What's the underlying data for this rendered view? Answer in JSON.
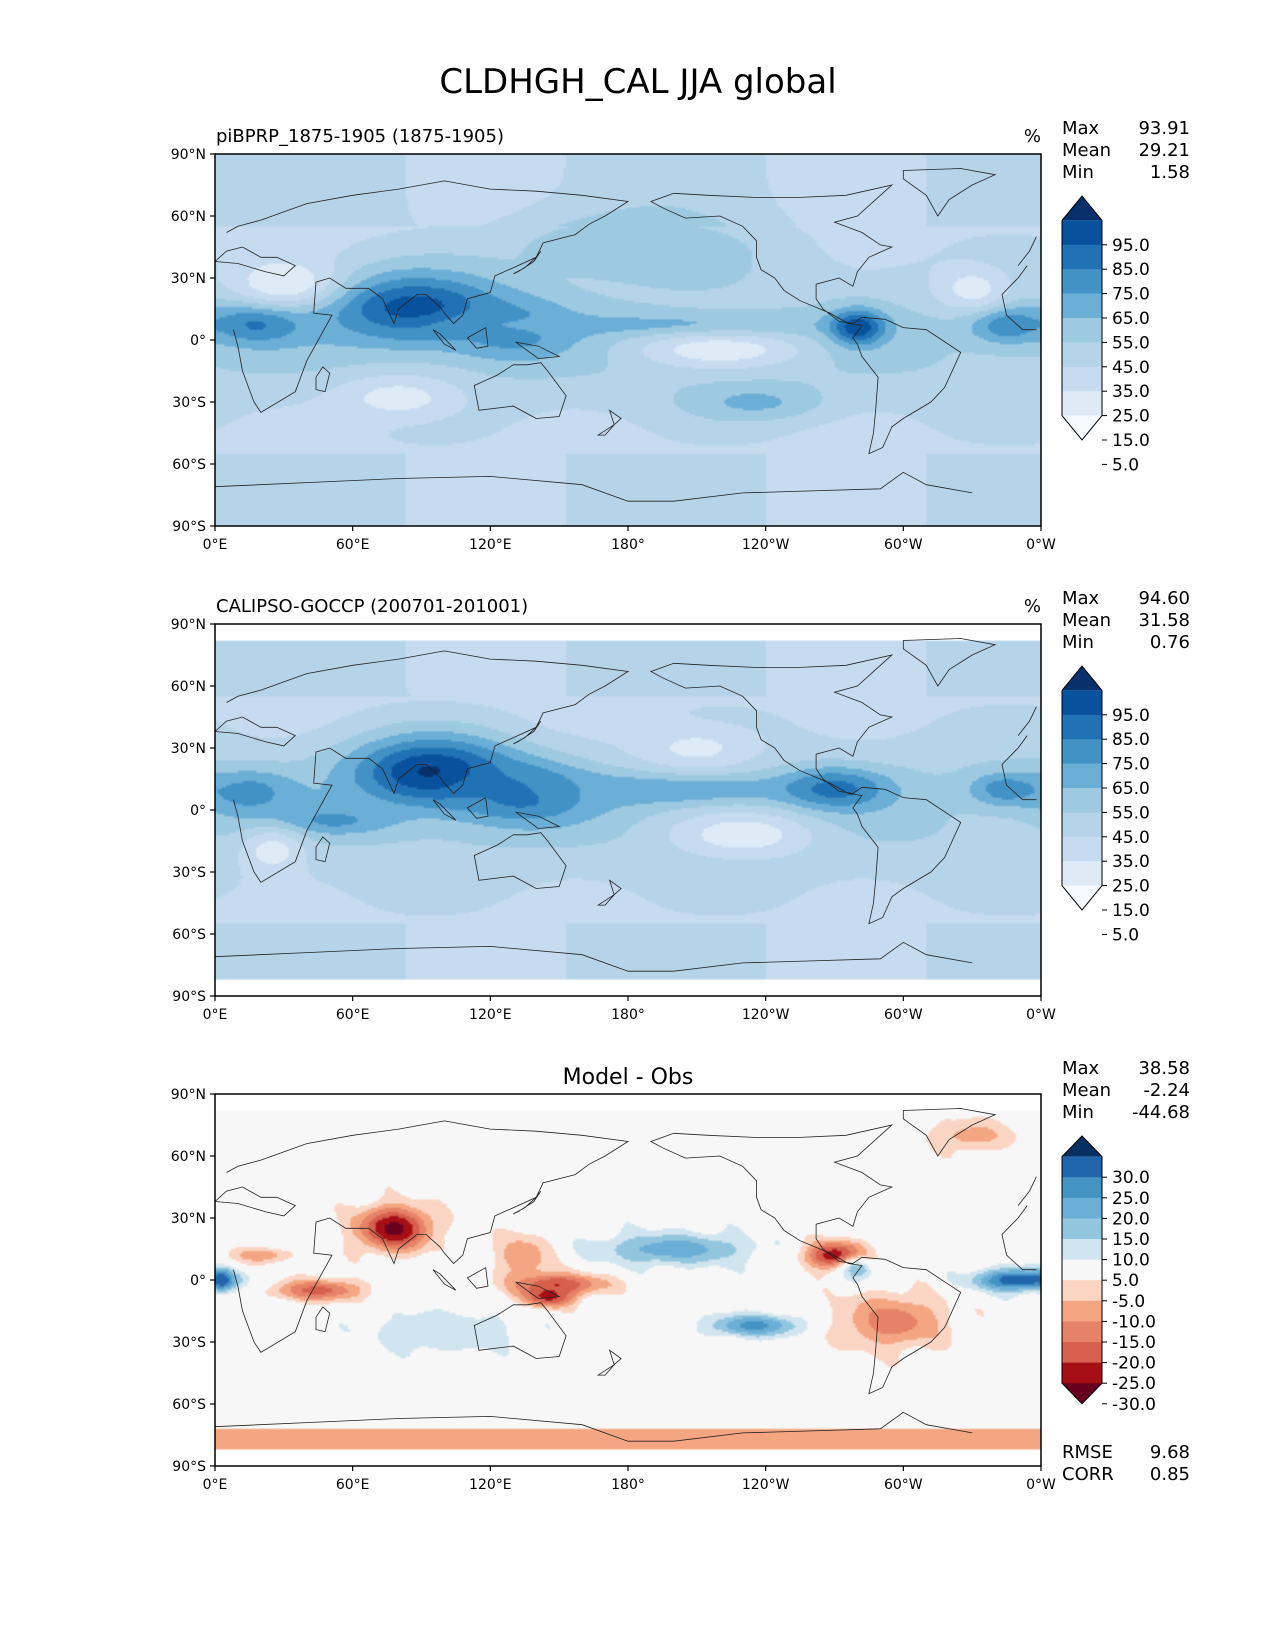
{
  "title": "CLDHGH_CAL JJA global",
  "x_ticks": [
    "0°E",
    "60°E",
    "120°E",
    "180°",
    "120°W",
    "60°W",
    "0°W"
  ],
  "y_ticks": [
    "90°N",
    "60°N",
    "30°N",
    "0°",
    "30°S",
    "60°S",
    "90°S"
  ],
  "colors": {
    "blues": [
      "#f7fbff",
      "#deebf7",
      "#c6dbef",
      "#b5d3e9",
      "#9ecae1",
      "#6baed6",
      "#4292c6",
      "#2171b5",
      "#08519c",
      "#08306b"
    ],
    "diverging": [
      "#67001f",
      "#a50f15",
      "#d6604d",
      "#e58267",
      "#f4a582",
      "#fbd5c4",
      "#f7f7f7",
      "#d1e5f0",
      "#92c5de",
      "#6baed6",
      "#4393c3",
      "#2166ac",
      "#053061"
    ],
    "coast": "#222222",
    "axes": "#000000"
  },
  "chart_data": [
    {
      "type": "heatmap",
      "title": "piBPRP_1875-1905 (1875-1905)",
      "units": "%",
      "stats": [
        {
          "label": "Max",
          "value": "93.91"
        },
        {
          "label": "Mean",
          "value": "29.21"
        },
        {
          "label": "Min",
          "value": "1.58"
        }
      ],
      "colorbar": {
        "levels": [
          "95.0",
          "85.0",
          "75.0",
          "65.0",
          "55.0",
          "45.0",
          "35.0",
          "25.0",
          "15.0",
          "5.0"
        ]
      },
      "xlim": [
        0,
        360
      ],
      "ylim": [
        -90,
        90
      ],
      "features": [
        {
          "lon": 18,
          "lat": 8,
          "value": 68,
          "sx": 14,
          "sy": 7
        },
        {
          "lon": 88,
          "lat": 15,
          "value": 82,
          "sx": 28,
          "sy": 12
        },
        {
          "lon": 130,
          "lat": 5,
          "value": 62,
          "sx": 18,
          "sy": 10
        },
        {
          "lon": 190,
          "lat": 7,
          "value": 50,
          "sx": 60,
          "sy": 4
        },
        {
          "lon": 280,
          "lat": 6,
          "value": 85,
          "sx": 8,
          "sy": 6
        },
        {
          "lon": 345,
          "lat": 8,
          "value": 65,
          "sx": 12,
          "sy": 7
        },
        {
          "lon": 235,
          "lat": -30,
          "value": 48,
          "sx": 20,
          "sy": 6
        },
        {
          "lon": 180,
          "lat": 45,
          "value": 45,
          "sx": 40,
          "sy": 12
        },
        {
          "lon": 30,
          "lat": 28,
          "value": 6,
          "sx": 16,
          "sy": 8
        },
        {
          "lon": 220,
          "lat": -5,
          "value": 8,
          "sx": 25,
          "sy": 6
        },
        {
          "lon": 80,
          "lat": -28,
          "value": 10,
          "sx": 20,
          "sy": 8
        },
        {
          "lon": 330,
          "lat": 25,
          "value": 10,
          "sx": 12,
          "sy": 8
        }
      ]
    },
    {
      "type": "heatmap",
      "title": "CALIPSO-GOCCP (200701-201001)",
      "units": "%",
      "stats": [
        {
          "label": "Max",
          "value": "94.60"
        },
        {
          "label": "Mean",
          "value": "31.58"
        },
        {
          "label": "Min",
          "value": "0.76"
        }
      ],
      "colorbar": {
        "levels": [
          "95.0",
          "85.0",
          "75.0",
          "65.0",
          "55.0",
          "45.0",
          "35.0",
          "25.0",
          "15.0",
          "5.0"
        ]
      },
      "xlim": [
        0,
        360
      ],
      "ylim": [
        -90,
        90
      ],
      "features": [
        {
          "lon": 15,
          "lat": 8,
          "value": 60,
          "sx": 14,
          "sy": 8
        },
        {
          "lon": 95,
          "lat": 18,
          "value": 88,
          "sx": 25,
          "sy": 12
        },
        {
          "lon": 135,
          "lat": 8,
          "value": 72,
          "sx": 20,
          "sy": 10
        },
        {
          "lon": 200,
          "lat": 10,
          "value": 55,
          "sx": 45,
          "sy": 6
        },
        {
          "lon": 270,
          "lat": 10,
          "value": 70,
          "sx": 16,
          "sy": 7
        },
        {
          "lon": 345,
          "lat": 10,
          "value": 62,
          "sx": 12,
          "sy": 6
        },
        {
          "lon": 50,
          "lat": -5,
          "value": 58,
          "sx": 20,
          "sy": 5
        },
        {
          "lon": 230,
          "lat": -12,
          "value": 8,
          "sx": 22,
          "sy": 8
        },
        {
          "lon": 25,
          "lat": -20,
          "value": 10,
          "sx": 10,
          "sy": 8
        },
        {
          "lon": 210,
          "lat": 30,
          "value": 12,
          "sx": 20,
          "sy": 8
        }
      ]
    },
    {
      "type": "heatmap",
      "title": "Model - Obs",
      "stats": [
        {
          "label": "Max",
          "value": "38.58"
        },
        {
          "label": "Mean",
          "value": "-2.24"
        },
        {
          "label": "Min",
          "value": "-44.68"
        }
      ],
      "colorbar": {
        "levels": [
          "30.0",
          "25.0",
          "20.0",
          "15.0",
          "10.0",
          "5.0",
          "-5.0",
          "-10.0",
          "-15.0",
          "-20.0",
          "-25.0",
          "-30.0"
        ]
      },
      "metrics": [
        {
          "label": "RMSE",
          "value": "9.68"
        },
        {
          "label": "CORR",
          "value": "0.85"
        }
      ],
      "xlim": [
        0,
        360
      ],
      "ylim": [
        -90,
        90
      ],
      "features": [
        {
          "lon": 78,
          "lat": 25,
          "value": -32,
          "sx": 12,
          "sy": 8
        },
        {
          "lon": 45,
          "lat": -5,
          "value": -22,
          "sx": 15,
          "sy": 4
        },
        {
          "lon": 20,
          "lat": 12,
          "value": -14,
          "sx": 10,
          "sy": 3
        },
        {
          "lon": 135,
          "lat": 12,
          "value": -15,
          "sx": 10,
          "sy": 8
        },
        {
          "lon": 150,
          "lat": -2,
          "value": -24,
          "sx": 15,
          "sy": 4
        },
        {
          "lon": 145,
          "lat": -8,
          "value": -28,
          "sx": 8,
          "sy": 4
        },
        {
          "lon": 270,
          "lat": 12,
          "value": -30,
          "sx": 10,
          "sy": 5
        },
        {
          "lon": 295,
          "lat": -20,
          "value": -18,
          "sx": 18,
          "sy": 10
        },
        {
          "lon": 3,
          "lat": 0,
          "value": 28,
          "sx": 3,
          "sy": 3
        },
        {
          "lon": 350,
          "lat": 0,
          "value": 30,
          "sx": 14,
          "sy": 4
        },
        {
          "lon": 200,
          "lat": 15,
          "value": 18,
          "sx": 25,
          "sy": 6
        },
        {
          "lon": 235,
          "lat": -22,
          "value": 22,
          "sx": 15,
          "sy": 4
        },
        {
          "lon": 100,
          "lat": -25,
          "value": 10,
          "sx": 25,
          "sy": 8
        },
        {
          "lon": 330,
          "lat": 70,
          "value": -12,
          "sx": 15,
          "sy": 6
        },
        {
          "lon": 280,
          "lat": 5,
          "value": 15,
          "sx": 5,
          "sy": 4
        }
      ]
    }
  ]
}
